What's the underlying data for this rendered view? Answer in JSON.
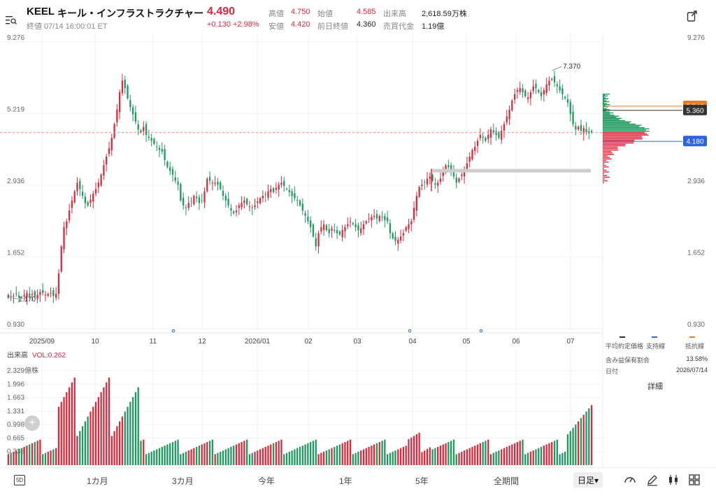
{
  "header": {
    "ticker": "KEEL",
    "company_name": "キール・インフラストラクチャー",
    "price": "4.490",
    "change": "+0.130 +2.98%",
    "timestamp": "終値 07/14 16:00:01 ET",
    "stats": {
      "high_label": "高値",
      "high": "4.750",
      "low_label": "安値",
      "low": "4.420",
      "open_label": "始値",
      "open": "4.585",
      "prev_close_label": "前日終値",
      "prev_close": "4.360",
      "volume_label": "出来高",
      "volume": "2,618.59万株",
      "turnover_label": "売買代金",
      "turnover": "1.19億"
    },
    "up_color": "#e0263a",
    "down_color": "#1a9a5c"
  },
  "chart_data": {
    "type": "candlestick",
    "scale": "log",
    "ylim": [
      0.93,
      9.276
    ],
    "y_ticks": [
      "9.276",
      "5.219",
      "2.936",
      "1.652",
      "0.930"
    ],
    "x_ticks": [
      "2025/09",
      "10",
      "11",
      "12",
      "2026/01",
      "02",
      "03",
      "04",
      "05",
      "06",
      "07"
    ],
    "annotations": {
      "max_label": "7.370",
      "min_label": "1.170",
      "last_price": 4.49
    },
    "levels": [
      {
        "name": "抵抗線",
        "value": "5.540",
        "color": "#f07a20"
      },
      {
        "name": "平均約定価格",
        "value": "5.360",
        "color": "#333333"
      },
      {
        "name": "支持線",
        "value": "4.180",
        "color": "#2d63e0"
      }
    ],
    "close": [
      1.22,
      1.2,
      1.21,
      1.23,
      1.2,
      1.19,
      1.22,
      1.24,
      1.21,
      1.23,
      1.2,
      1.22,
      1.25,
      1.24,
      1.22,
      1.23,
      1.24,
      1.21,
      1.23,
      1.45,
      1.8,
      2.1,
      2.2,
      2.4,
      2.6,
      2.8,
      3.0,
      2.85,
      2.7,
      2.55,
      2.5,
      2.62,
      2.75,
      2.85,
      3.0,
      3.2,
      3.45,
      3.7,
      3.95,
      4.3,
      4.8,
      5.4,
      6.2,
      6.8,
      6.4,
      5.9,
      5.5,
      5.2,
      4.9,
      4.6,
      4.5,
      4.7,
      4.4,
      4.3,
      4.2,
      4.1,
      4.0,
      3.9,
      3.85,
      3.6,
      3.4,
      3.3,
      3.2,
      3.05,
      2.95,
      2.6,
      2.5,
      2.45,
      2.55,
      2.58,
      2.7,
      2.65,
      2.55,
      2.6,
      2.8,
      3.1,
      3.05,
      3.0,
      3.0,
      2.95,
      2.85,
      2.7,
      2.6,
      2.5,
      2.4,
      2.35,
      2.4,
      2.5,
      2.55,
      2.6,
      2.52,
      2.48,
      2.45,
      2.5,
      2.58,
      2.65,
      2.7,
      2.72,
      2.8,
      2.85,
      2.78,
      2.88,
      2.95,
      3.0,
      2.92,
      2.85,
      2.78,
      2.7,
      2.65,
      2.6,
      2.5,
      2.4,
      2.3,
      2.2,
      2.1,
      1.95,
      1.8,
      2.0,
      2.1,
      2.15,
      2.05,
      2.0,
      2.08,
      2.05,
      2.0,
      1.98,
      2.05,
      2.1,
      2.15,
      2.2,
      2.15,
      2.1,
      2.05,
      2.08,
      2.15,
      2.2,
      2.25,
      2.28,
      2.3,
      2.25,
      2.3,
      2.28,
      2.22,
      2.2,
      2.0,
      1.92,
      1.88,
      1.9,
      1.95,
      2.0,
      2.1,
      2.15,
      2.2,
      2.45,
      2.7,
      2.9,
      2.95,
      3.0,
      3.1,
      3.15,
      3.05,
      2.95,
      3.0,
      3.1,
      3.3,
      3.45,
      3.4,
      3.35,
      3.15,
      3.0,
      3.1,
      3.2,
      3.35,
      3.5,
      3.7,
      3.9,
      4.0,
      4.2,
      4.4,
      4.3,
      4.2,
      4.4,
      4.6,
      4.5,
      4.4,
      4.3,
      4.55,
      4.8,
      5.1,
      5.4,
      5.8,
      6.1,
      6.3,
      6.4,
      6.2,
      6.0,
      5.95,
      6.2,
      6.5,
      6.4,
      6.2,
      6.0,
      6.3,
      6.6,
      6.8,
      6.9,
      6.7,
      6.5,
      6.3,
      6.1,
      5.9,
      5.7,
      5.2,
      4.8,
      4.6,
      4.7,
      4.55,
      4.65,
      4.5,
      4.45,
      4.49
    ],
    "volume_ylim": [
      0,
      2.329
    ],
    "volume_ticks": [
      "2.329億株",
      "1.996",
      "1.663",
      "1.331",
      "0.998",
      "0.665",
      "0.333"
    ],
    "volume_label": "出来高",
    "volume_indicator": "VOL:0.262"
  },
  "side_panel": {
    "legend": [
      {
        "label": "平均約定価格",
        "color": "#333333"
      },
      {
        "label": "支持線",
        "color": "#2d63e0"
      },
      {
        "label": "抵抗線",
        "color": "#f07a20"
      }
    ],
    "ratio_label": "含み益保有割合",
    "ratio_value": "13.58%",
    "date_label": "日付",
    "date_value": "2026/07/14",
    "detail_label": "詳細"
  },
  "bottom_bar": {
    "badge": "5D",
    "periods": [
      "1カ月",
      "3カ月",
      "今年",
      "1年",
      "5年",
      "全期間"
    ],
    "interval": "日足▾"
  }
}
